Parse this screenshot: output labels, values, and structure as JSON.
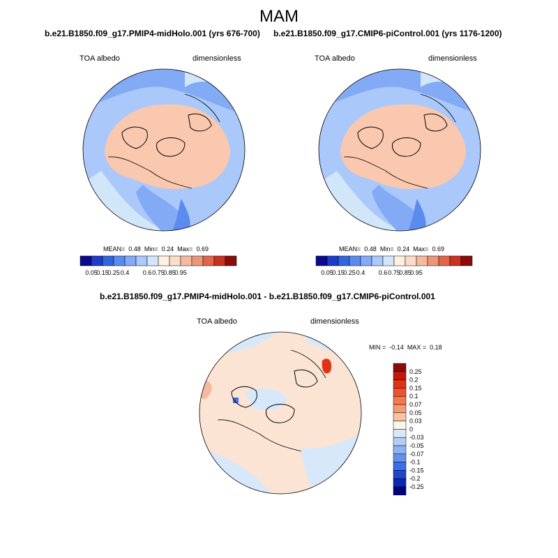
{
  "header": {
    "season": "MAM"
  },
  "panels": [
    {
      "title": "b.e21.B1850.f09_g17.PMIP4-midHolo.001 (yrs 676-700)",
      "variable": "TOA albedo",
      "units": "dimensionless",
      "stats": {
        "mean_label": "MEAN=",
        "mean": "0.48",
        "min_label": "Min=",
        "min": "0.24",
        "max_label": "Max=",
        "max": "0.69"
      }
    },
    {
      "title": "b.e21.B1850.f09_g17.CMIP6-piControl.001 (yrs 1176-1200)",
      "variable": "TOA albedo",
      "units": "dimensionless",
      "stats": {
        "mean_label": "MEAN=",
        "mean": "0.48",
        "min_label": "Min=",
        "min": "0.24",
        "max_label": "Max=",
        "max": "0.69"
      }
    }
  ],
  "difference": {
    "title": "b.e21.B1850.f09_g17.PMIP4-midHolo.001 - b.e21.B1850.f09_g17.CMIP6-piControl.001",
    "variable": "TOA albedo",
    "units": "dimensionless",
    "stats": {
      "min_label": "MIN =",
      "min": "-0.14",
      "max_label": "MAX =",
      "max": "0.18"
    }
  },
  "colorbar_main": {
    "colors": [
      "#0a0a8c",
      "#1e3cc8",
      "#3264dc",
      "#5a8cf0",
      "#82aaf5",
      "#aac8fa",
      "#d2e6fa",
      "#fff0e0",
      "#fadcc8",
      "#f5b9a0",
      "#eb9678",
      "#e1644b",
      "#c83223",
      "#8c0a0a"
    ],
    "labels": [
      "0.05",
      "0.15",
      "0.25",
      "0.4",
      "0.6",
      "0.75",
      "0.85",
      "0.95"
    ]
  },
  "colorbar_diff": {
    "colors": [
      "#8c0a0a",
      "#c01a0a",
      "#e03214",
      "#f0502d",
      "#f5784b",
      "#f59a73",
      "#f8c3a5",
      "#fff5e6",
      "#d7e8fa",
      "#b4cdf5",
      "#8cb4f0",
      "#6490eb",
      "#3c6ee6",
      "#1e46d2",
      "#0a28b4",
      "#00007d"
    ],
    "labels": [
      "0.25",
      "0.2",
      "0.15",
      "0.1",
      "0.07",
      "0.05",
      "0.03",
      "0",
      "-0.03",
      "-0.05",
      "-0.07",
      "-0.1",
      "-0.15",
      "-0.2",
      "-0.25"
    ]
  },
  "map_colors": {
    "ice": "#fac8ae",
    "lightblue": "#d2e6fa",
    "midblue": "#aac8fa",
    "blue": "#82aaf5",
    "deepblue": "#5a8cf0",
    "cream": "#fff0e0",
    "diff_pos": "#fbe4d3",
    "diff_neg": "#d7e8fa",
    "diff_hot": "#e03214",
    "diff_cold": "#3c6ee6"
  }
}
